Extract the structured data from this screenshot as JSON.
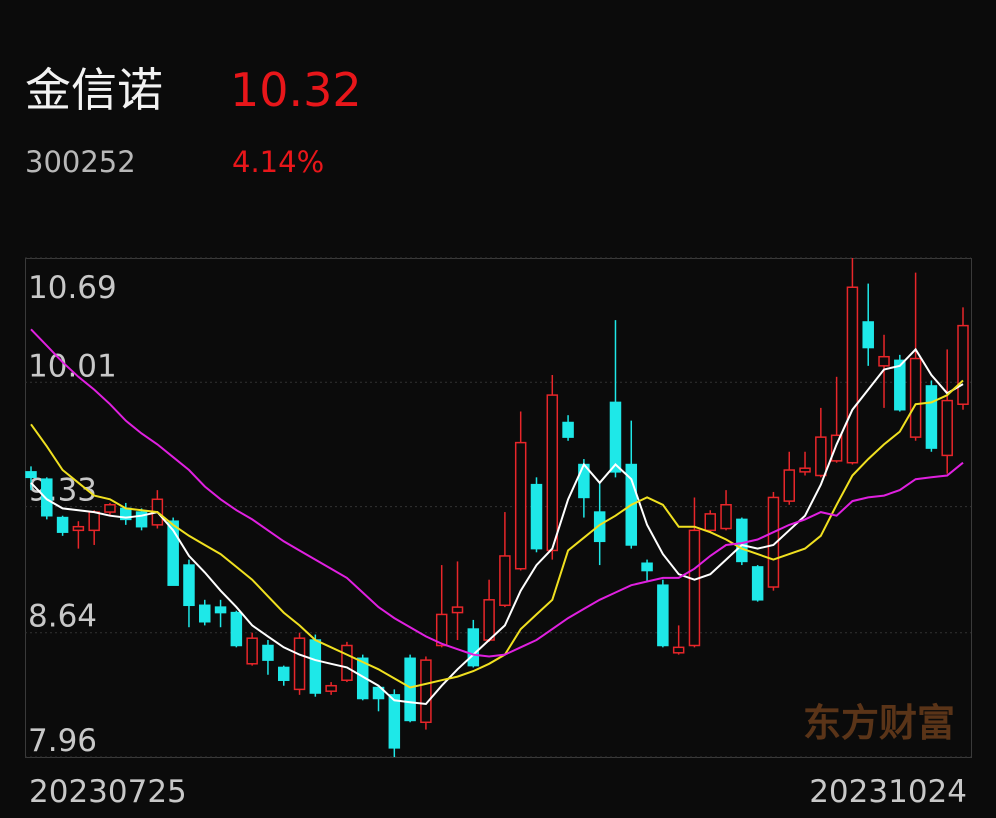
{
  "header": {
    "name": "金信诺",
    "price": "10.32",
    "code": "300252",
    "change": "4.14%"
  },
  "chart_data": {
    "type": "candlestick",
    "categories": [
      "20230725",
      null,
      null,
      null,
      null,
      null,
      null,
      null,
      null,
      null,
      null,
      null,
      null,
      null,
      null,
      null,
      null,
      null,
      null,
      null,
      null,
      null,
      null,
      null,
      null,
      null,
      null,
      null,
      null,
      null,
      null,
      null,
      null,
      null,
      null,
      null,
      null,
      null,
      null,
      null,
      null,
      null,
      null,
      null,
      null,
      null,
      null,
      null,
      null,
      null,
      null,
      null,
      null,
      null,
      null,
      null,
      null,
      null,
      null,
      "20231024"
    ],
    "ylim": [
      7.96,
      10.69
    ],
    "yticks": [
      10.69,
      10.01,
      9.33,
      8.64,
      7.96
    ],
    "grid": true,
    "up_color": "#e8262a",
    "down_color": "#1ee8e8",
    "open": [
      9.52,
      9.48,
      9.27,
      9.2,
      9.2,
      9.3,
      9.32,
      9.3,
      9.23,
      9.25,
      9.01,
      8.79,
      8.78,
      8.75,
      8.47,
      8.57,
      8.45,
      8.33,
      8.6,
      8.32,
      8.38,
      8.5,
      8.34,
      8.3,
      8.5,
      8.15,
      8.57,
      8.75,
      8.66,
      8.6,
      8.79,
      8.99,
      9.45,
      9.09,
      9.79,
      9.56,
      9.3,
      9.9,
      9.56,
      9.02,
      8.9,
      8.53,
      8.57,
      9.2,
      9.21,
      9.26,
      9.0,
      8.89,
      9.36,
      9.52,
      9.5,
      9.58,
      9.57,
      10.34,
      10.1,
      10.13,
      9.71,
      9.99,
      9.61,
      9.89
    ],
    "high": [
      9.55,
      9.49,
      9.28,
      9.25,
      9.31,
      9.35,
      9.35,
      9.32,
      9.42,
      9.27,
      9.04,
      8.82,
      8.82,
      8.76,
      8.64,
      8.6,
      8.46,
      8.64,
      8.63,
      8.37,
      8.59,
      8.52,
      8.35,
      8.33,
      8.52,
      8.51,
      9.01,
      9.03,
      8.71,
      8.93,
      9.3,
      9.85,
      9.49,
      10.05,
      9.83,
      9.59,
      9.46,
      10.35,
      9.8,
      9.04,
      8.93,
      8.68,
      9.38,
      9.31,
      9.42,
      9.27,
      9.01,
      9.41,
      9.63,
      9.63,
      9.87,
      10.04,
      10.69,
      10.55,
      10.27,
      10.16,
      10.61,
      10.02,
      10.19,
      10.42
    ],
    "low": [
      9.42,
      9.26,
      9.17,
      9.1,
      9.12,
      9.28,
      9.23,
      9.2,
      9.21,
      8.9,
      8.67,
      8.68,
      8.67,
      8.56,
      8.46,
      8.41,
      8.35,
      8.3,
      8.29,
      8.3,
      8.37,
      8.27,
      8.21,
      7.96,
      8.15,
      8.11,
      8.56,
      8.6,
      8.45,
      8.59,
      8.78,
      8.98,
      9.08,
      9.04,
      9.69,
      9.27,
      9.01,
      9.49,
      9.1,
      8.92,
      8.56,
      8.52,
      8.56,
      9.19,
      9.2,
      9.01,
      8.81,
      8.87,
      9.34,
      9.5,
      9.49,
      9.57,
      9.56,
      10.1,
      9.87,
      9.85,
      9.69,
      9.63,
      9.51,
      9.86
    ],
    "close": [
      9.49,
      9.28,
      9.19,
      9.22,
      9.3,
      9.34,
      9.26,
      9.22,
      9.37,
      8.9,
      8.79,
      8.7,
      8.75,
      8.57,
      8.61,
      8.49,
      8.38,
      8.61,
      8.31,
      8.35,
      8.57,
      8.28,
      8.28,
      8.01,
      8.16,
      8.49,
      8.74,
      8.78,
      8.46,
      8.82,
      9.06,
      9.68,
      9.1,
      9.94,
      9.71,
      9.38,
      9.14,
      9.52,
      9.12,
      8.98,
      8.57,
      8.56,
      9.2,
      9.29,
      9.34,
      9.03,
      8.82,
      9.38,
      9.53,
      9.54,
      9.71,
      9.72,
      10.53,
      10.2,
      10.15,
      9.86,
      10.14,
      9.65,
      9.91,
      10.32
    ],
    "series": [
      {
        "color": "#ffffff",
        "values": [
          9.46,
          9.37,
          9.32,
          9.31,
          9.3,
          9.28,
          9.27,
          9.28,
          9.3,
          9.2,
          9.06,
          8.97,
          8.87,
          8.78,
          8.68,
          8.62,
          8.56,
          8.52,
          8.49,
          8.47,
          8.45,
          8.4,
          8.35,
          8.27,
          8.26,
          8.25,
          8.35,
          8.44,
          8.52,
          8.6,
          8.68,
          8.87,
          9.01,
          9.1,
          9.37,
          9.56,
          9.46,
          9.56,
          9.48,
          9.23,
          9.07,
          8.96,
          8.93,
          8.96,
          9.04,
          9.12,
          9.1,
          9.12,
          9.2,
          9.28,
          9.45,
          9.67,
          9.86,
          9.97,
          10.08,
          10.1,
          10.19,
          10.05,
          9.95,
          10.0
        ]
      },
      {
        "color": "#f0e020",
        "values": [
          9.78,
          9.66,
          9.53,
          9.46,
          9.39,
          9.37,
          9.32,
          9.31,
          9.3,
          9.23,
          9.17,
          9.12,
          9.07,
          9.0,
          8.93,
          8.84,
          8.75,
          8.68,
          8.6,
          8.56,
          8.52,
          8.48,
          8.44,
          8.39,
          8.34,
          8.36,
          8.38,
          8.4,
          8.43,
          8.47,
          8.52,
          8.66,
          8.74,
          8.82,
          9.09,
          9.16,
          9.23,
          9.28,
          9.34,
          9.38,
          9.34,
          9.22,
          9.22,
          9.19,
          9.15,
          9.1,
          9.07,
          9.04,
          9.07,
          9.1,
          9.17,
          9.34,
          9.5,
          9.59,
          9.67,
          9.74,
          9.89,
          9.9,
          9.94,
          10.02
        ]
      },
      {
        "color": "#e020e0",
        "values": [
          10.3,
          10.21,
          10.12,
          10.04,
          9.97,
          9.89,
          9.8,
          9.73,
          9.67,
          9.6,
          9.53,
          9.44,
          9.37,
          9.31,
          9.26,
          9.2,
          9.14,
          9.09,
          9.04,
          8.99,
          8.94,
          8.86,
          8.78,
          8.72,
          8.67,
          8.62,
          8.58,
          8.55,
          8.52,
          8.51,
          8.52,
          8.56,
          8.6,
          8.66,
          8.72,
          8.77,
          8.82,
          8.86,
          8.9,
          8.92,
          8.94,
          8.94,
          8.99,
          9.06,
          9.12,
          9.13,
          9.15,
          9.19,
          9.23,
          9.26,
          9.3,
          9.28,
          9.36,
          9.38,
          9.39,
          9.42,
          9.48,
          9.49,
          9.5,
          9.57
        ]
      }
    ]
  },
  "watermark": "东方财富"
}
